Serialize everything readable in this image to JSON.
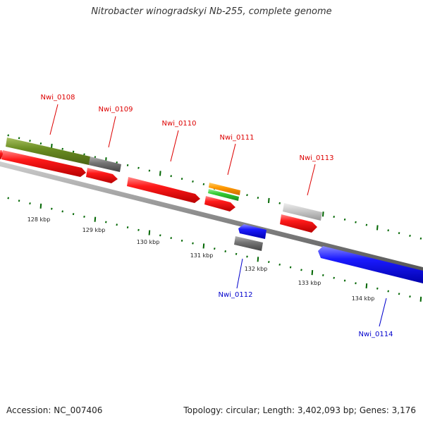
{
  "title": "Nitrobacter winogradskyi Nb-255, complete genome",
  "footer": {
    "accession": "Accession: NC_007406",
    "summary": "Topology: circular; Length: 3,402,093 bp; Genes: 3,176"
  },
  "scale_labels": [
    "128 kbp",
    "129 kbp",
    "130 kbp",
    "131 kbp",
    "132 kbp",
    "133 kbp",
    "134 kbp"
  ],
  "genes": {
    "forward": [
      "Nwi_0108",
      "Nwi_0109",
      "Nwi_0110",
      "Nwi_0111",
      "Nwi_0113"
    ],
    "reverse": [
      "Nwi_0112",
      "Nwi_0114"
    ]
  },
  "colors": {
    "forward_label": "#dd0000",
    "reverse_label": "#0000cc",
    "forward_gene": "#ff0000",
    "reverse_gene": "#0000ff",
    "backbone": "#888888",
    "tick": "#006600",
    "olive_feature": "#6b8e23",
    "orange_feature": "#ff9900",
    "green_feature": "#33cc33",
    "gray_feature": "#777777",
    "light_gray_feature": "#cccccc"
  }
}
